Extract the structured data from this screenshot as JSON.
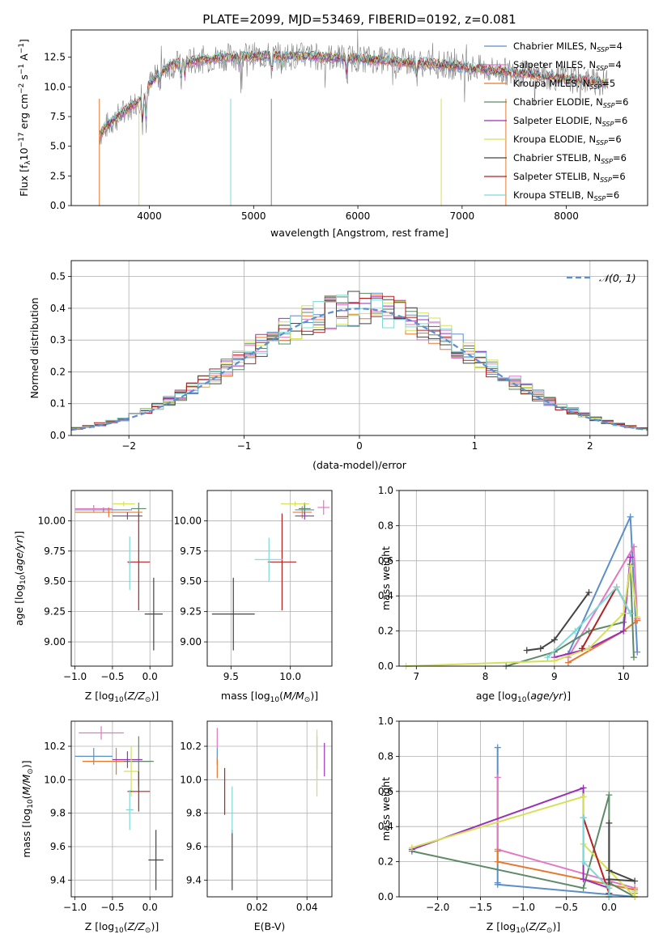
{
  "figure_title": "PLATE=2099, MJD=53469, FIBERID=0192, z=0.081",
  "colors": {
    "Chabrier MILES": "#5a8fc8",
    "Salpeter MILES": "#e377c2",
    "Kroupa MILES": "#e8772e",
    "Chabrier ELODIE": "#5f8a68",
    "Salpeter ELODIE": "#9b30b8",
    "Kroupa ELODIE": "#d4e157",
    "Chabrier STELIB": "#444444",
    "Salpeter STELIB": "#b22222",
    "Kroupa STELIB": "#7fd8d8",
    "data": "#808080",
    "gauss": "#5a8fd0"
  },
  "chart_data": [
    {
      "id": "spectrum",
      "type": "line",
      "xlabel": "wavelength [Angstrom, rest frame]",
      "ylabel": "Flux [f_λ10^-17 erg cm^-2 s^-1 A^-1]",
      "xlim": [
        3250,
        8780
      ],
      "ylim": [
        0,
        14.8
      ],
      "xticks": [
        4000,
        5000,
        6000,
        7000,
        8000
      ],
      "yticks": [
        "0.0",
        "2.5",
        "5.0",
        "7.5",
        "10.0",
        "12.5"
      ],
      "grid": false,
      "legend_position": "top-right",
      "legend": [
        {
          "name": "Chabrier MILES",
          "nssp": "4"
        },
        {
          "name": "Salpeter MILES",
          "nssp": "4"
        },
        {
          "name": "Kroupa MILES",
          "nssp": "5"
        },
        {
          "name": "Chabrier ELODIE",
          "nssp": "6"
        },
        {
          "name": "Salpeter ELODIE",
          "nssp": "6"
        },
        {
          "name": "Kroupa ELODIE",
          "nssp": "6"
        },
        {
          "name": "Chabrier STELIB",
          "nssp": "6"
        },
        {
          "name": "Salpeter STELIB",
          "nssp": "6"
        },
        {
          "name": "Kroupa STELIB",
          "nssp": "6"
        }
      ],
      "continuum": {
        "x": [
          3520,
          3600,
          3700,
          3800,
          3900,
          4000,
          4100,
          4200,
          4300,
          4500,
          4700,
          4900,
          5100,
          5300,
          5500,
          5700,
          6000,
          6300,
          6600,
          6900,
          7200,
          7500,
          7800,
          8100,
          8400
        ],
        "y": [
          6.0,
          6.8,
          7.5,
          8.2,
          8.9,
          10.2,
          11.2,
          11.8,
          12.0,
          12.3,
          12.5,
          12.6,
          12.6,
          12.6,
          12.6,
          12.5,
          12.4,
          12.2,
          12.0,
          11.8,
          11.5,
          11.2,
          10.9,
          10.6,
          10.3
        ]
      },
      "absorption_lines": [
        {
          "x": 3934,
          "depth": 3.0
        },
        {
          "x": 3969,
          "depth": 2.6
        },
        {
          "x": 4102,
          "depth": 1.2
        },
        {
          "x": 4304,
          "depth": 1.5
        },
        {
          "x": 4341,
          "depth": 1.2
        },
        {
          "x": 4861,
          "depth": 1.0
        },
        {
          "x": 5175,
          "depth": 1.5
        },
        {
          "x": 5270,
          "depth": 0.8
        },
        {
          "x": 5892,
          "depth": 1.5
        },
        {
          "x": 6563,
          "depth": 1.2
        }
      ]
    },
    {
      "id": "residuals",
      "type": "step",
      "xlabel": "(data-model)/error",
      "ylabel": "Normed distribution",
      "xlim": [
        -2.5,
        2.5
      ],
      "ylim": [
        0,
        0.55
      ],
      "xticks": [
        "−2",
        "−1",
        "0",
        "1",
        "2"
      ],
      "yticks": [
        "0.0",
        "0.1",
        "0.2",
        "0.3",
        "0.4",
        "0.5"
      ],
      "grid": true,
      "bin_width": 0.1,
      "legend_position": "top-right",
      "legend": "𝒩(0, 1)",
      "reference": {
        "name": "𝒩(0, 1)",
        "mu": 0,
        "sigma": 1
      }
    },
    {
      "id": "age_vs_Z",
      "type": "errorbar",
      "xlabel": "Z [log10(Z/Z⊙)]",
      "ylabel": "age [log10(age/yr)]",
      "xlim": [
        -1.05,
        0.3
      ],
      "ylim": [
        8.8,
        10.25
      ],
      "xticks": [
        "−1.0",
        "−0.5",
        "0.0"
      ],
      "yticks": [
        "9.00",
        "9.25",
        "9.50",
        "9.75",
        "10.00"
      ],
      "grid": true,
      "points": [
        {
          "model": "Chabrier MILES",
          "x": -0.62,
          "y": 10.09,
          "xerr": 0.38,
          "yerr": 0.02
        },
        {
          "model": "Salpeter MILES",
          "x": -0.75,
          "y": 10.1,
          "xerr": 0.25,
          "yerr": 0.03
        },
        {
          "model": "Kroupa MILES",
          "x": -0.55,
          "y": 10.07,
          "xerr": 0.45,
          "yerr": 0.04
        },
        {
          "model": "Chabrier ELODIE",
          "x": -0.15,
          "y": 10.1,
          "xerr": 0.1,
          "yerr": 0.05
        },
        {
          "model": "Salpeter ELODIE",
          "x": -0.3,
          "y": 10.04,
          "xerr": 0.2,
          "yerr": 0.03
        },
        {
          "model": "Kroupa ELODIE",
          "x": -0.35,
          "y": 10.14,
          "xerr": 0.15,
          "yerr": 0.02
        },
        {
          "model": "Chabrier STELIB",
          "x": 0.05,
          "y": 9.23,
          "xerr": 0.12,
          "yerr": 0.3
        },
        {
          "model": "Salpeter STELIB",
          "x": -0.15,
          "y": 9.66,
          "xerr": 0.15,
          "yerr": 0.4
        },
        {
          "model": "Kroupa STELIB",
          "x": -0.27,
          "y": 9.65,
          "xerr": 0.02,
          "yerr": 0.22
        }
      ]
    },
    {
      "id": "age_vs_mass",
      "type": "errorbar",
      "xlabel": "mass [log10(M/M⊙)]",
      "ylabel": "",
      "xlim": [
        9.3,
        10.35
      ],
      "ylim": [
        8.8,
        10.25
      ],
      "xticks": [
        "9.5",
        "10.0"
      ],
      "yticks": [
        "9.00",
        "9.25",
        "9.50",
        "9.75",
        "10.00"
      ],
      "grid": true,
      "points": [
        {
          "model": "Chabrier MILES",
          "x": 10.12,
          "y": 10.09,
          "xerr": 0.08,
          "yerr": 0.03
        },
        {
          "model": "Salpeter MILES",
          "x": 10.28,
          "y": 10.11,
          "xerr": 0.05,
          "yerr": 0.06
        },
        {
          "model": "Kroupa MILES",
          "x": 10.1,
          "y": 10.07,
          "xerr": 0.08,
          "yerr": 0.05
        },
        {
          "model": "Chabrier ELODIE",
          "x": 10.12,
          "y": 10.1,
          "xerr": 0.05,
          "yerr": 0.05
        },
        {
          "model": "Salpeter ELODIE",
          "x": 10.12,
          "y": 10.04,
          "xerr": 0.08,
          "yerr": 0.03
        },
        {
          "model": "Kroupa ELODIE",
          "x": 10.04,
          "y": 10.14,
          "xerr": 0.12,
          "yerr": 0.02
        },
        {
          "model": "Chabrier STELIB",
          "x": 9.52,
          "y": 9.23,
          "xerr": 0.18,
          "yerr": 0.3
        },
        {
          "model": "Salpeter STELIB",
          "x": 9.93,
          "y": 9.66,
          "xerr": 0.12,
          "yerr": 0.4
        },
        {
          "model": "Kroupa STELIB",
          "x": 9.82,
          "y": 9.68,
          "xerr": 0.12,
          "yerr": 0.18
        }
      ]
    },
    {
      "id": "weight_vs_age",
      "type": "line",
      "xlabel": "age [log10(age/yr)]",
      "ylabel": "mass weight",
      "xlim": [
        6.75,
        10.35
      ],
      "ylim": [
        0,
        1.0
      ],
      "xticks": [
        "7",
        "8",
        "9",
        "10"
      ],
      "yticks": [
        "0.0",
        "0.2",
        "0.4",
        "0.6",
        "0.8",
        "1.0"
      ],
      "grid": true,
      "series": [
        {
          "model": "Chabrier MILES",
          "x": [
            9.2,
            10.1,
            10.2
          ],
          "y": [
            0.07,
            0.85,
            0.08
          ]
        },
        {
          "model": "Salpeter MILES",
          "x": [
            9.2,
            10.15,
            10.2
          ],
          "y": [
            0.05,
            0.68,
            0.27
          ]
        },
        {
          "model": "Kroupa MILES",
          "x": [
            9.2,
            10.0,
            10.2
          ],
          "y": [
            0.02,
            0.2,
            0.26
          ]
        },
        {
          "model": "Chabrier ELODIE",
          "x": [
            8.3,
            9.0,
            9.5,
            10.0,
            10.1,
            10.15
          ],
          "y": [
            0.0,
            0.08,
            0.2,
            0.25,
            0.58,
            0.05
          ]
        },
        {
          "model": "Salpeter ELODIE",
          "x": [
            9.0,
            9.5,
            10.0,
            10.1
          ],
          "y": [
            0.05,
            0.1,
            0.2,
            0.62
          ]
        },
        {
          "model": "Kroupa ELODIE",
          "x": [
            6.85,
            9.0,
            9.5,
            10.0,
            10.1,
            10.2
          ],
          "y": [
            0.0,
            0.03,
            0.1,
            0.3,
            0.57,
            0.28
          ]
        },
        {
          "model": "Chabrier STELIB",
          "x": [
            8.6,
            8.8,
            9.0,
            9.5
          ],
          "y": [
            0.09,
            0.1,
            0.15,
            0.42
          ]
        },
        {
          "model": "Salpeter STELIB",
          "x": [
            9.4,
            9.9,
            10.1
          ],
          "y": [
            0.1,
            0.45,
            0.3
          ]
        },
        {
          "model": "Kroupa STELIB",
          "x": [
            8.9,
            9.3,
            9.9,
            10.1
          ],
          "y": [
            0.05,
            0.2,
            0.45,
            0.3
          ]
        }
      ]
    },
    {
      "id": "mass_vs_Z",
      "type": "errorbar",
      "xlabel": "Z [log10(Z/Z⊙)]",
      "ylabel": "mass [log10(M/M⊙)]",
      "xlim": [
        -1.05,
        0.3
      ],
      "ylim": [
        9.3,
        10.35
      ],
      "xticks": [
        "−1.0",
        "−0.5",
        "0.0"
      ],
      "yticks": [
        "9.4",
        "9.6",
        "9.8",
        "10.0",
        "10.2"
      ],
      "grid": true,
      "points": [
        {
          "model": "Chabrier MILES",
          "x": -0.75,
          "y": 10.14,
          "xerr": 0.25,
          "yerr": 0.05
        },
        {
          "model": "Salpeter MILES",
          "x": -0.65,
          "y": 10.28,
          "xerr": 0.3,
          "yerr": 0.04
        },
        {
          "model": "Kroupa MILES",
          "x": -0.45,
          "y": 10.11,
          "xerr": 0.45,
          "yerr": 0.08
        },
        {
          "model": "Chabrier ELODIE",
          "x": -0.15,
          "y": 10.11,
          "xerr": 0.2,
          "yerr": 0.15
        },
        {
          "model": "Salpeter ELODIE",
          "x": -0.3,
          "y": 10.12,
          "xerr": 0.2,
          "yerr": 0.05
        },
        {
          "model": "Kroupa ELODIE",
          "x": -0.25,
          "y": 10.05,
          "xerr": 0.1,
          "yerr": 0.15
        },
        {
          "model": "Chabrier STELIB",
          "x": 0.08,
          "y": 9.52,
          "xerr": 0.1,
          "yerr": 0.18
        },
        {
          "model": "Salpeter STELIB",
          "x": -0.15,
          "y": 9.93,
          "xerr": 0.15,
          "yerr": 0.12
        },
        {
          "model": "Kroupa STELIB",
          "x": -0.27,
          "y": 9.82,
          "xerr": 0.05,
          "yerr": 0.12
        }
      ]
    },
    {
      "id": "mass_vs_ebv",
      "type": "errorbar",
      "xlabel": "E(B-V)",
      "ylabel": "",
      "xlim": [
        0.0,
        0.05
      ],
      "ylim": [
        9.3,
        10.35
      ],
      "xticks": [
        "0.02",
        "0.04"
      ],
      "yticks": [
        "9.4",
        "9.6",
        "9.8",
        "10.0",
        "10.2"
      ],
      "grid": true,
      "points": [
        {
          "model": "Chabrier MILES",
          "x": 0.004,
          "y": 10.14,
          "xerr": 0.0,
          "yerr": 0.05
        },
        {
          "model": "Salpeter MILES",
          "x": 0.004,
          "y": 10.25,
          "xerr": 0.0,
          "yerr": 0.06
        },
        {
          "model": "Kroupa MILES",
          "x": 0.004,
          "y": 10.07,
          "xerr": 0.0,
          "yerr": 0.06
        },
        {
          "model": "Chabrier ELODIE",
          "x": 0.044,
          "y": 10.16,
          "xerr": 0.0,
          "yerr": 0.1
        },
        {
          "model": "Salpeter ELODIE",
          "x": 0.047,
          "y": 10.12,
          "xerr": 0.0,
          "yerr": 0.1
        },
        {
          "model": "Kroupa ELODIE",
          "x": 0.044,
          "y": 10.1,
          "xerr": 0.0,
          "yerr": 0.2
        },
        {
          "model": "Chabrier STELIB",
          "x": 0.01,
          "y": 9.52,
          "xerr": 0.0,
          "yerr": 0.18
        },
        {
          "model": "Salpeter STELIB",
          "x": 0.007,
          "y": 9.93,
          "xerr": 0.0,
          "yerr": 0.14
        },
        {
          "model": "Kroupa STELIB",
          "x": 0.01,
          "y": 9.82,
          "xerr": 0.0,
          "yerr": 0.14
        }
      ]
    },
    {
      "id": "weight_vs_Z",
      "type": "line",
      "xlabel": "Z [log10(Z/Z⊙)]",
      "ylabel": "mass weight",
      "xlim": [
        -2.45,
        0.45
      ],
      "ylim": [
        0,
        1.0
      ],
      "xticks": [
        "−2.0",
        "−1.5",
        "−1.0",
        "−0.5",
        "0.0"
      ],
      "yticks": [
        "0.0",
        "0.2",
        "0.4",
        "0.6",
        "0.8",
        "1.0"
      ],
      "grid": true,
      "series": [
        {
          "model": "Chabrier MILES",
          "x": [
            -1.3,
            -1.3,
            -1.3,
            0.3
          ],
          "y": [
            0.85,
            0.08,
            0.07,
            0.0
          ]
        },
        {
          "model": "Salpeter MILES",
          "x": [
            -1.3,
            -1.3,
            0.3
          ],
          "y": [
            0.68,
            0.27,
            0.05
          ]
        },
        {
          "model": "Kroupa MILES",
          "x": [
            -1.3,
            -1.3,
            0.3,
            0.3
          ],
          "y": [
            0.26,
            0.2,
            0.04,
            0.02
          ]
        },
        {
          "model": "Chabrier ELODIE",
          "x": [
            -2.3,
            -0.3,
            0.0,
            0.0,
            0.3
          ],
          "y": [
            0.26,
            0.05,
            0.58,
            0.08,
            0.0
          ]
        },
        {
          "model": "Salpeter ELODIE",
          "x": [
            -2.3,
            -0.3,
            -0.3,
            0.0
          ],
          "y": [
            0.27,
            0.62,
            0.1,
            0.05
          ]
        },
        {
          "model": "Kroupa ELODIE",
          "x": [
            -2.3,
            -0.3,
            -0.3,
            0.3,
            0.3
          ],
          "y": [
            0.28,
            0.57,
            0.3,
            0.0,
            0.03
          ]
        },
        {
          "model": "Chabrier STELIB",
          "x": [
            0.0,
            0.0,
            0.3,
            0.0,
            0.0
          ],
          "y": [
            0.42,
            0.15,
            0.09,
            0.1,
            0.0
          ]
        },
        {
          "model": "Salpeter STELIB",
          "x": [
            -0.3,
            0.0
          ],
          "y": [
            0.45,
            0.02
          ]
        },
        {
          "model": "Kroupa STELIB",
          "x": [
            -0.3,
            -0.3,
            0.0,
            0.0
          ],
          "y": [
            0.45,
            0.2,
            0.05,
            0.0
          ]
        }
      ]
    }
  ]
}
